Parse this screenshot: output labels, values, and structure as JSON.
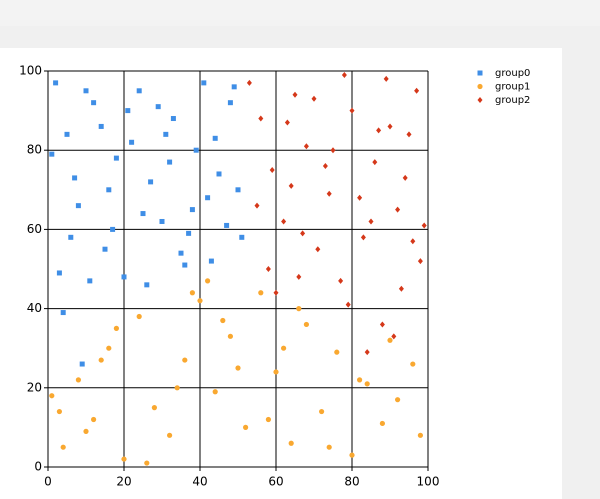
{
  "chart_data": {
    "type": "scatter",
    "xlim": [
      0,
      100
    ],
    "ylim": [
      0,
      100
    ],
    "xticks": [
      0,
      20,
      40,
      60,
      80,
      100
    ],
    "yticks": [
      0,
      20,
      40,
      60,
      80,
      100
    ],
    "grid": true,
    "legend": "right",
    "series": [
      {
        "name": "group0",
        "color": "#3f8ee6",
        "marker": "square",
        "x": [
          2,
          5,
          8,
          12,
          15,
          18,
          20,
          24,
          27,
          30,
          33,
          36,
          39,
          42,
          45,
          48,
          51,
          3,
          7,
          10,
          14,
          17,
          22,
          26,
          29,
          32,
          35,
          38,
          41,
          44,
          47,
          50,
          1,
          6,
          11,
          16,
          21,
          25,
          31,
          37,
          43,
          49,
          4,
          9
        ],
        "y": [
          97,
          84,
          66,
          92,
          55,
          78,
          48,
          95,
          72,
          62,
          88,
          51,
          80,
          68,
          74,
          92,
          58,
          49,
          73,
          95,
          86,
          60,
          82,
          46,
          91,
          77,
          54,
          65,
          97,
          83,
          61,
          70,
          79,
          58,
          47,
          70,
          90,
          64,
          84,
          59,
          52,
          96,
          39,
          26
        ]
      },
      {
        "name": "group1",
        "color": "#f9a830",
        "marker": "circle",
        "x": [
          1,
          4,
          8,
          12,
          16,
          20,
          24,
          28,
          32,
          36,
          40,
          44,
          48,
          52,
          56,
          60,
          64,
          68,
          72,
          76,
          80,
          84,
          88,
          92,
          96,
          3,
          10,
          18,
          26,
          34,
          42,
          50,
          58,
          66,
          74,
          82,
          90,
          98,
          14,
          38,
          46,
          62
        ],
        "y": [
          18,
          5,
          22,
          12,
          30,
          2,
          38,
          15,
          8,
          27,
          42,
          19,
          33,
          10,
          44,
          24,
          6,
          36,
          14,
          29,
          3,
          21,
          11,
          17,
          26,
          14,
          9,
          35,
          1,
          20,
          47,
          25,
          12,
          40,
          5,
          22,
          32,
          8,
          27,
          44,
          37,
          30
        ]
      },
      {
        "name": "group2",
        "color": "#d5381a",
        "marker": "diamond",
        "x": [
          53,
          56,
          59,
          62,
          65,
          68,
          71,
          74,
          77,
          80,
          83,
          86,
          89,
          92,
          95,
          98,
          55,
          60,
          64,
          70,
          75,
          79,
          85,
          90,
          94,
          97,
          58,
          63,
          67,
          73,
          78,
          82,
          88,
          93,
          99,
          66,
          84,
          91,
          96,
          87
        ],
        "y": [
          97,
          88,
          75,
          62,
          94,
          81,
          55,
          69,
          47,
          90,
          58,
          77,
          98,
          65,
          84,
          52,
          66,
          44,
          71,
          93,
          80,
          41,
          62,
          86,
          73,
          95,
          50,
          87,
          59,
          76,
          99,
          68,
          36,
          45,
          61,
          48,
          29,
          33,
          57,
          85
        ]
      }
    ]
  }
}
